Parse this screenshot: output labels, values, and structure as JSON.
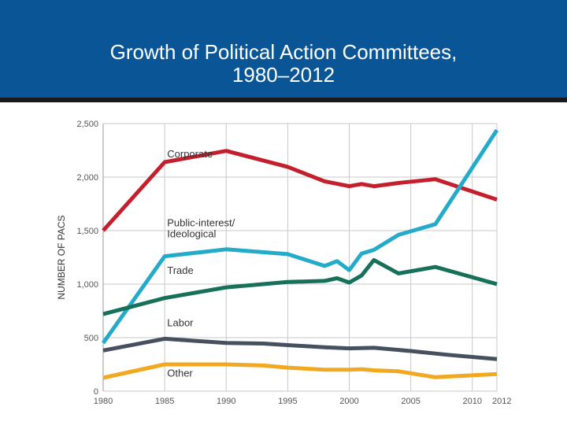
{
  "title": {
    "line1": "Growth of Political Action Committees,",
    "line2": "1980–2012"
  },
  "colors": {
    "header_bg": "#0a5596",
    "corporate": "#c41f2d",
    "public_interest": "#23abc9",
    "trade": "#17705a",
    "labor": "#46505e",
    "other": "#f1a922",
    "grid": "#c8c8c8",
    "label_text": "#333333"
  },
  "chart_data": {
    "type": "line",
    "title": "Growth of Political Action Committees, 1980–2012",
    "xlabel": "",
    "ylabel": "NUMBER OF PACS",
    "xlim": [
      1980,
      2012
    ],
    "ylim": [
      0,
      2500
    ],
    "x_ticks": [
      1980,
      1985,
      1990,
      1995,
      2000,
      2005,
      2010,
      2012
    ],
    "x_tick_labels": [
      "1980",
      "1985",
      "1990",
      "1995",
      "2000",
      "2005",
      "2010",
      "2012"
    ],
    "y_ticks": [
      0,
      500,
      1000,
      1500,
      2000,
      2500
    ],
    "y_tick_labels": [
      "0",
      "500",
      "1,000",
      "1,500",
      "2,000",
      "2,500"
    ],
    "grid": true,
    "series": [
      {
        "name": "Corporate",
        "labels": [
          "Corporate"
        ],
        "color_key": "corporate",
        "label_at": [
          1985.2,
          2185
        ],
        "x": [
          1980,
          1985,
          1990,
          1995,
          1998,
          2000,
          2001,
          2002,
          2004,
          2007,
          2012
        ],
        "y": [
          1500,
          2140,
          2245,
          2095,
          1960,
          1915,
          1935,
          1915,
          1945,
          1980,
          1790
        ]
      },
      {
        "name": "Public-interest/ Ideological",
        "labels": [
          "Public-interest/",
          "Ideological"
        ],
        "color_key": "public_interest",
        "label_at": [
          1985.2,
          1540
        ],
        "x": [
          1980,
          1985,
          1990,
          1995,
          1998,
          1999,
          2000,
          2001,
          2002,
          2004,
          2007,
          2012
        ],
        "y": [
          450,
          1260,
          1325,
          1280,
          1170,
          1215,
          1130,
          1285,
          1320,
          1460,
          1560,
          2440
        ]
      },
      {
        "name": "Trade",
        "labels": [
          "Trade"
        ],
        "color_key": "trade",
        "label_at": [
          1985.2,
          1095
        ],
        "x": [
          1980,
          1985,
          1990,
          1995,
          1998,
          1999,
          2000,
          2001,
          2002,
          2004,
          2007,
          2012
        ],
        "y": [
          720,
          870,
          970,
          1020,
          1030,
          1055,
          1015,
          1080,
          1225,
          1100,
          1160,
          1000
        ]
      },
      {
        "name": "Labor",
        "labels": [
          "Labor"
        ],
        "color_key": "labor",
        "label_at": [
          1985.2,
          605
        ],
        "x": [
          1980,
          1985,
          1990,
          1993,
          1995,
          1998,
          2000,
          2002,
          2005,
          2008,
          2012
        ],
        "y": [
          380,
          490,
          450,
          445,
          430,
          410,
          400,
          405,
          375,
          340,
          300
        ]
      },
      {
        "name": "Other",
        "labels": [
          "Other"
        ],
        "color_key": "other",
        "label_at": [
          1985.2,
          135
        ],
        "x": [
          1980,
          1985,
          1990,
          1993,
          1995,
          1998,
          2000,
          2001,
          2002,
          2004,
          2007,
          2012
        ],
        "y": [
          125,
          250,
          250,
          240,
          220,
          200,
          200,
          205,
          195,
          185,
          130,
          160
        ]
      }
    ]
  }
}
